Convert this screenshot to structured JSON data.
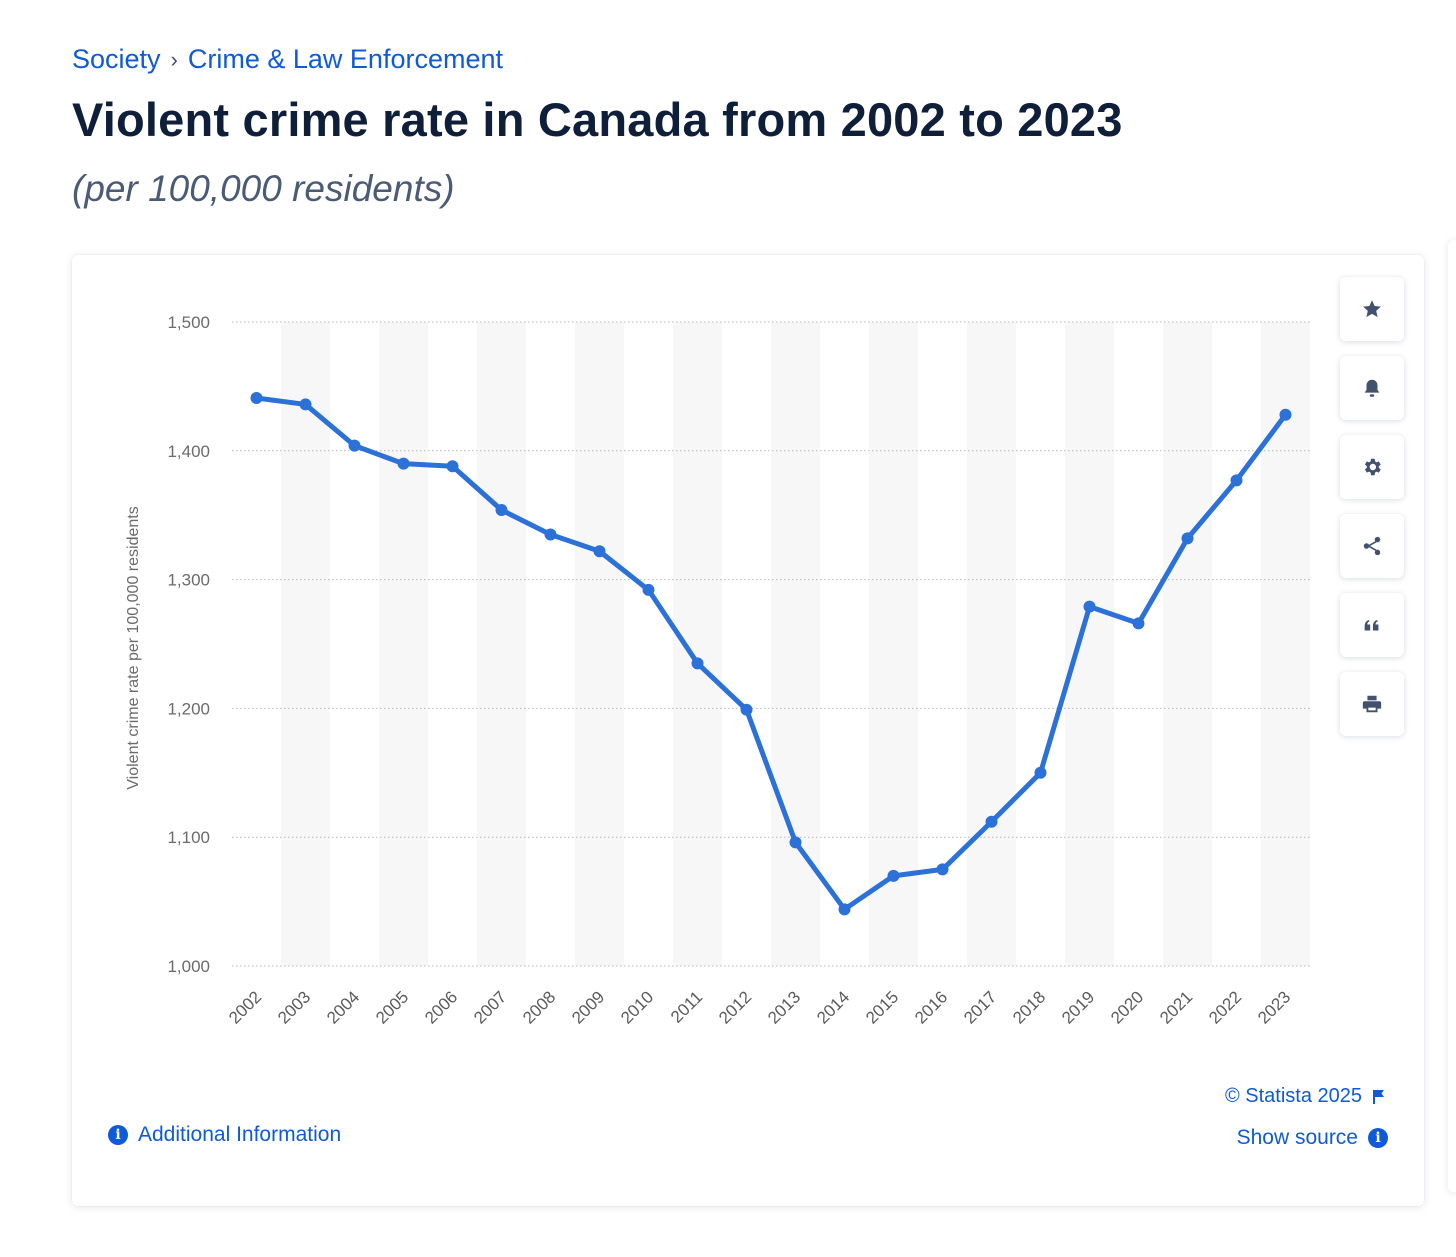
{
  "breadcrumb": {
    "level1": "Society",
    "separator": "›",
    "level2": "Crime & Law Enforcement"
  },
  "title": "Violent crime rate in Canada from 2002 to 2023",
  "subtitle": "(per 100,000 residents)",
  "toolbar": {
    "icons": [
      "star-icon",
      "bell-icon",
      "gear-icon",
      "share-icon",
      "quote-icon",
      "print-icon"
    ]
  },
  "footer": {
    "copyright": "© Statista 2025",
    "show_source": "Show source",
    "additional_info": "Additional Information"
  },
  "colors": {
    "line": "#2b71d8",
    "accent": "#0f5ad6",
    "band": "#f7f7f8",
    "grid": "#b8b8b8"
  },
  "chart_data": {
    "type": "line",
    "title": "Violent crime rate in Canada from 2002 to 2023",
    "subtitle": "(per 100,000 residents)",
    "xlabel": "",
    "ylabel": "Violent crime rate per 100,000 residents",
    "ylim": [
      1000,
      1500
    ],
    "yticks": [
      1000,
      1100,
      1200,
      1300,
      1400,
      1500
    ],
    "ytick_labels": [
      "1,000",
      "1,100",
      "1,200",
      "1,300",
      "1,400",
      "1,500"
    ],
    "grid": true,
    "categories": [
      "2002",
      "2003",
      "2004",
      "2005",
      "2006",
      "2007",
      "2008",
      "2009",
      "2010",
      "2011",
      "2012",
      "2013",
      "2014",
      "2015",
      "2016",
      "2017",
      "2018",
      "2019",
      "2020",
      "2021",
      "2022",
      "2023"
    ],
    "series": [
      {
        "name": "Violent crime rate",
        "values": [
          1441,
          1436,
          1404,
          1390,
          1388,
          1354,
          1335,
          1322,
          1292,
          1235,
          1199,
          1096,
          1044,
          1070,
          1075,
          1112,
          1150,
          1279,
          1266,
          1332,
          1377,
          1428
        ]
      }
    ]
  }
}
